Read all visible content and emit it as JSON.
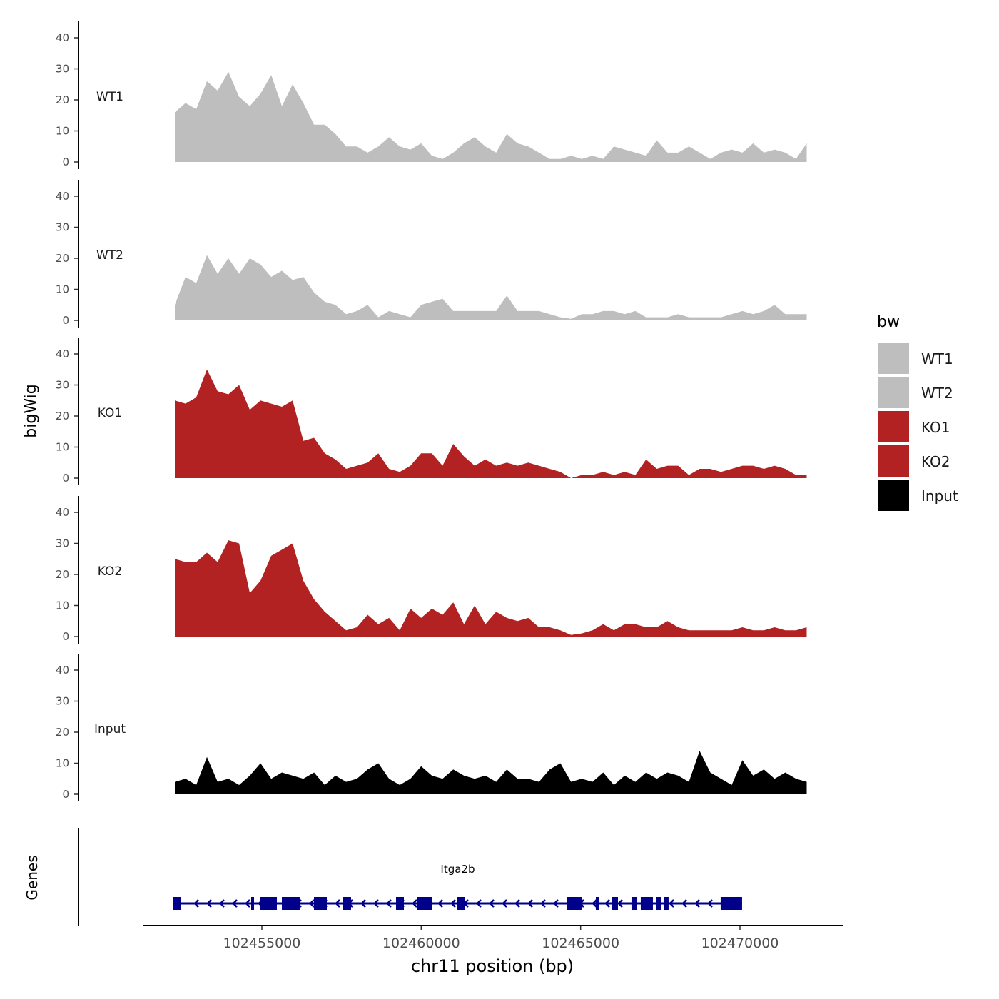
{
  "chart_data": {
    "type": "area",
    "title": "",
    "xlabel": "chr11 position (bp)",
    "ylabel": "bigWig",
    "genes_label": "Genes",
    "xlim": [
      102451262,
      102473200
    ],
    "x_ticks": [
      102455000,
      102460000,
      102465000,
      102470000
    ],
    "x_tick_labels": [
      "102455000",
      "102460000",
      "102465000",
      "102470000"
    ],
    "ylim": [
      0,
      40
    ],
    "y_ticks": [
      0,
      10,
      20,
      30,
      40
    ],
    "y_tick_labels": [
      "0",
      "10",
      "20",
      "30",
      "40"
    ],
    "grid": false,
    "x_start": 102452269,
    "x_step": 336,
    "legend": {
      "title": "bw",
      "placement": "right",
      "entries": [
        {
          "label": "WT1",
          "color": "#BEBEBE"
        },
        {
          "label": "WT2",
          "color": "#BEBEBE"
        },
        {
          "label": "KO1",
          "color": "#B22222"
        },
        {
          "label": "KO2",
          "color": "#B22222"
        },
        {
          "label": "Input",
          "color": "#000000"
        }
      ]
    },
    "series": [
      {
        "name": "WT1",
        "color": "#BEBEBE",
        "values": [
          16,
          19,
          17,
          26,
          23,
          29,
          21,
          18,
          22,
          28,
          18,
          25,
          19,
          12,
          12,
          9,
          5,
          5,
          3,
          5,
          8,
          5,
          4,
          6,
          2,
          1,
          3,
          6,
          8,
          5,
          3,
          9,
          6,
          5,
          3,
          1,
          1,
          2,
          1,
          2,
          1,
          5,
          4,
          3,
          2,
          7,
          3,
          3,
          5,
          3,
          1,
          3,
          4,
          3,
          6,
          3,
          4,
          3,
          1,
          6
        ]
      },
      {
        "name": "WT2",
        "color": "#BEBEBE",
        "values": [
          5,
          14,
          12,
          21,
          15,
          20,
          15,
          20,
          18,
          14,
          16,
          13,
          14,
          9,
          6,
          5,
          2,
          3,
          5,
          1,
          3,
          2,
          1,
          5,
          6,
          7,
          3,
          3,
          3,
          3,
          3,
          8,
          3,
          3,
          3,
          2,
          1,
          0.5,
          2,
          2,
          3,
          3,
          2,
          3,
          1,
          1,
          1,
          2,
          1,
          1,
          1,
          1,
          2,
          3,
          2,
          3,
          5,
          2,
          2,
          2
        ]
      },
      {
        "name": "KO1",
        "color": "#B22222",
        "values": [
          25,
          24,
          26,
          35,
          28,
          27,
          30,
          22,
          25,
          24,
          23,
          25,
          12,
          13,
          8,
          6,
          3,
          4,
          5,
          8,
          3,
          2,
          4,
          8,
          8,
          4,
          11,
          7,
          4,
          6,
          4,
          5,
          4,
          5,
          4,
          3,
          2,
          0,
          1,
          1,
          2,
          1,
          2,
          1,
          6,
          3,
          4,
          4,
          1,
          3,
          3,
          2,
          3,
          4,
          4,
          3,
          4,
          3,
          1,
          1
        ]
      },
      {
        "name": "KO2",
        "color": "#B22222",
        "values": [
          25,
          24,
          24,
          27,
          24,
          31,
          30,
          14,
          18,
          26,
          28,
          30,
          18,
          12,
          8,
          5,
          2,
          3,
          7,
          4,
          6,
          2,
          9,
          6,
          9,
          7,
          11,
          4,
          10,
          4,
          8,
          6,
          5,
          6,
          3,
          3,
          2,
          0.5,
          1,
          2,
          4,
          2,
          4,
          4,
          3,
          3,
          5,
          3,
          2,
          2,
          2,
          2,
          2,
          3,
          2,
          2,
          3,
          2,
          2,
          3
        ]
      },
      {
        "name": "Input",
        "color": "#000000",
        "values": [
          4,
          5,
          3,
          12,
          4,
          5,
          3,
          6,
          10,
          5,
          7,
          6,
          5,
          7,
          3,
          6,
          4,
          5,
          8,
          10,
          5,
          3,
          5,
          9,
          6,
          5,
          8,
          6,
          5,
          6,
          4,
          8,
          5,
          5,
          4,
          8,
          10,
          4,
          5,
          4,
          7,
          3,
          6,
          4,
          7,
          5,
          7,
          6,
          4,
          14,
          7,
          5,
          3,
          11,
          6,
          8,
          5,
          7,
          5,
          4
        ]
      }
    ],
    "genes": [
      {
        "name": "Itga2b",
        "strand": "-",
        "start": 102452224,
        "end": 102470066,
        "color": "#00008B",
        "exons": [
          [
            102452224,
            102452448
          ],
          [
            102454664,
            102454754
          ],
          [
            102454955,
            102455470
          ],
          [
            102455627,
            102456186
          ],
          [
            102456634,
            102457037
          ],
          [
            102457530,
            102457798
          ],
          [
            102459209,
            102459455
          ],
          [
            102459880,
            102460350
          ],
          [
            102461112,
            102461380
          ],
          [
            102464581,
            102465029
          ],
          [
            102465477,
            102465589
          ],
          [
            102465992,
            102466171
          ],
          [
            102466596,
            102466775
          ],
          [
            102466887,
            102467268
          ],
          [
            102467380,
            102467536
          ],
          [
            102467604,
            102467760
          ],
          [
            102469394,
            102470066
          ]
        ]
      }
    ]
  }
}
